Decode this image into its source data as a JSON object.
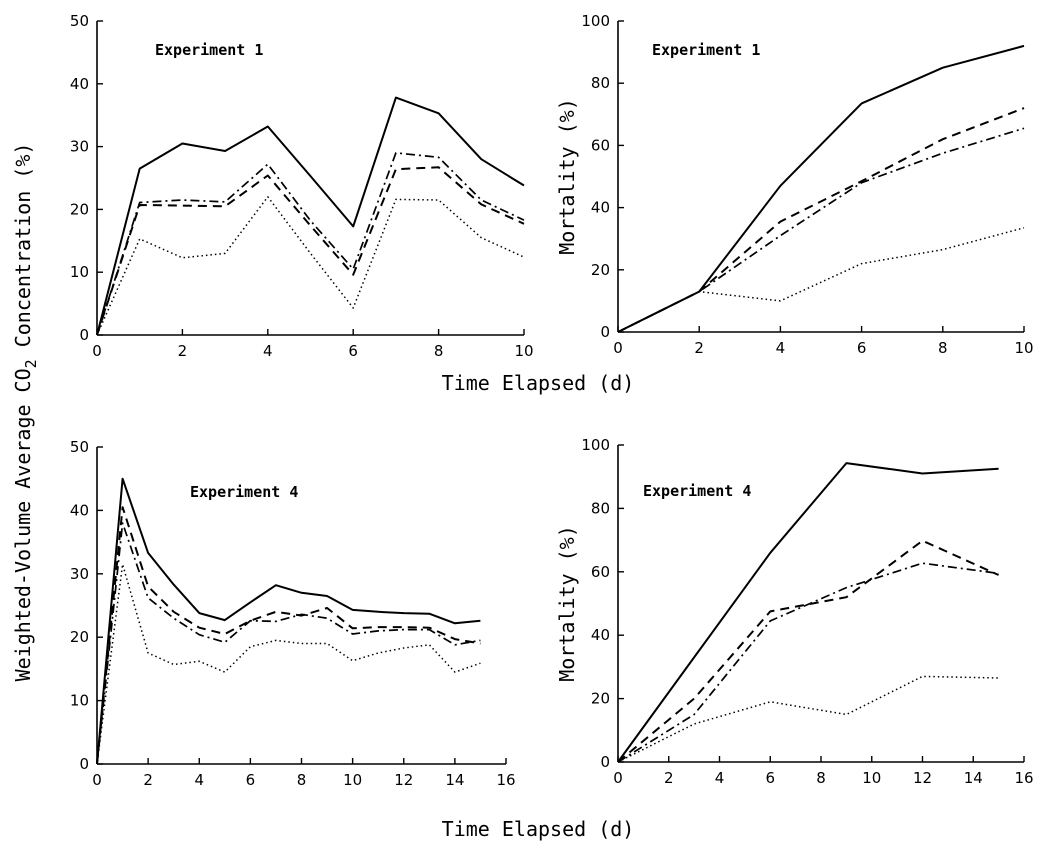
{
  "figure": {
    "shared_xlabel_top": "Time Elapsed (d)",
    "shared_xlabel_bottom": "Time Elapsed (d)",
    "shared_ylabel_left": "Weighted-Volume Average CO₂ Concentration (%)"
  },
  "chart_data": [
    {
      "type": "line",
      "title": "Experiment 1",
      "ylabel": "",
      "xlim": [
        0,
        10
      ],
      "ylim": [
        0,
        50
      ],
      "xticks": [
        0,
        2,
        4,
        6,
        8,
        10
      ],
      "yticks": [
        0,
        10,
        20,
        30,
        40,
        50
      ],
      "grid": false,
      "series": [
        {
          "style": "solid",
          "x": [
            0,
            1,
            2,
            3,
            4,
            5,
            6,
            7,
            8,
            9,
            10
          ],
          "y": [
            0,
            26.5,
            30.5,
            29.3,
            33.2,
            25.3,
            17.3,
            37.8,
            35.3,
            28,
            23.8
          ]
        },
        {
          "style": "dashdot",
          "x": [
            0,
            1,
            2,
            3,
            4,
            5,
            6,
            7,
            8,
            9,
            10
          ],
          "y": [
            0,
            21.1,
            21.5,
            21.2,
            27.2,
            18.2,
            10.5,
            29,
            28.3,
            21.5,
            18.3
          ]
        },
        {
          "style": "dashed",
          "x": [
            0,
            1,
            2,
            3,
            4,
            5,
            6,
            7,
            8,
            9,
            10
          ],
          "y": [
            0,
            20.7,
            20.6,
            20.5,
            25.4,
            17.4,
            9.6,
            26.4,
            26.7,
            20.8,
            17.7
          ]
        },
        {
          "style": "dotted",
          "x": [
            0,
            1,
            2,
            3,
            4,
            5,
            6,
            7,
            8,
            9,
            10
          ],
          "y": [
            0,
            15.3,
            12.3,
            13,
            22,
            13,
            4.3,
            21.6,
            21.5,
            15.5,
            12.4
          ]
        }
      ]
    },
    {
      "type": "line",
      "title": "Experiment 1",
      "ylabel": "Mortality (%)",
      "xlim": [
        0,
        10
      ],
      "ylim": [
        0,
        100
      ],
      "xticks": [
        0,
        2,
        4,
        6,
        8,
        10
      ],
      "yticks": [
        0,
        20,
        40,
        60,
        80,
        100
      ],
      "grid": false,
      "series": [
        {
          "style": "solid",
          "x": [
            0,
            2,
            4,
            6,
            8,
            10
          ],
          "y": [
            0,
            13,
            47,
            73.5,
            85,
            92
          ]
        },
        {
          "style": "dashed",
          "x": [
            0,
            2,
            4,
            6,
            8,
            10
          ],
          "y": [
            0,
            13,
            35.5,
            48.5,
            62,
            72
          ]
        },
        {
          "style": "dashdot",
          "x": [
            0,
            2,
            4,
            6,
            8,
            10
          ],
          "y": [
            0,
            13,
            31,
            48,
            57.5,
            65.5
          ]
        },
        {
          "style": "dotted",
          "x": [
            0,
            2,
            4,
            6,
            8,
            10
          ],
          "y": [
            0,
            13,
            10,
            22,
            26.5,
            33.5
          ]
        }
      ]
    },
    {
      "type": "line",
      "title": "Experiment 4",
      "ylabel": "",
      "xlim": [
        0,
        16
      ],
      "ylim": [
        0,
        50
      ],
      "xticks": [
        0,
        2,
        4,
        6,
        8,
        10,
        12,
        14,
        16
      ],
      "yticks": [
        0,
        10,
        20,
        30,
        40,
        50
      ],
      "grid": false,
      "series": [
        {
          "style": "solid",
          "x": [
            0,
            1,
            2,
            3,
            4,
            5,
            6,
            7,
            8,
            9,
            10,
            11,
            12,
            13,
            14,
            15
          ],
          "y": [
            0,
            45,
            33.3,
            28.3,
            23.8,
            22.7,
            25.5,
            28.2,
            27,
            26.5,
            24.3,
            24,
            23.8,
            23.7,
            22.2,
            22.6
          ]
        },
        {
          "style": "dashed",
          "x": [
            0,
            1,
            2,
            3,
            4,
            5,
            6,
            7,
            8,
            9,
            10,
            11,
            12,
            13,
            14,
            15
          ],
          "y": [
            0,
            40.5,
            28,
            24,
            21.5,
            20.5,
            22.6,
            24,
            23.4,
            24.6,
            21.4,
            21.6,
            21.6,
            21.5,
            19.7,
            19
          ]
        },
        {
          "style": "dashdot",
          "x": [
            0,
            1,
            2,
            3,
            4,
            5,
            6,
            7,
            8,
            9,
            10,
            11,
            12,
            13,
            14,
            15
          ],
          "y": [
            0,
            38,
            26.2,
            23,
            20.4,
            19.2,
            22.6,
            22.5,
            23.6,
            23,
            20.5,
            21,
            21.2,
            21.2,
            18.8,
            19.5
          ]
        },
        {
          "style": "dotted",
          "x": [
            0,
            1,
            2,
            3,
            4,
            5,
            6,
            7,
            8,
            9,
            10,
            11,
            12,
            13,
            14,
            15
          ],
          "y": [
            0,
            31.5,
            17.5,
            15.7,
            16.2,
            14.5,
            18.5,
            19.5,
            19,
            19,
            16.3,
            17.5,
            18.3,
            18.8,
            14.5,
            15.9
          ]
        }
      ]
    },
    {
      "type": "line",
      "title": "Experiment 4",
      "ylabel": "Mortality (%)",
      "xlim": [
        0,
        16
      ],
      "ylim": [
        0,
        100
      ],
      "xticks": [
        0,
        2,
        4,
        6,
        8,
        10,
        12,
        14,
        16
      ],
      "yticks": [
        0,
        20,
        40,
        60,
        80,
        100
      ],
      "grid": false,
      "series": [
        {
          "style": "solid",
          "x": [
            0,
            3,
            6,
            9,
            12,
            15
          ],
          "y": [
            0,
            33,
            66,
            94.3,
            91,
            92.5
          ]
        },
        {
          "style": "dashed",
          "x": [
            0,
            3,
            6,
            9,
            12,
            15
          ],
          "y": [
            0,
            20,
            47.5,
            52,
            69.8,
            59
          ]
        },
        {
          "style": "dashdot",
          "x": [
            0,
            3,
            6,
            9,
            12,
            15
          ],
          "y": [
            0,
            15,
            44.5,
            55,
            62.7,
            59.5
          ]
        },
        {
          "style": "dotted",
          "x": [
            0,
            3,
            6,
            9,
            12,
            15
          ],
          "y": [
            0,
            12,
            19,
            15,
            27,
            26.5
          ]
        }
      ]
    }
  ]
}
